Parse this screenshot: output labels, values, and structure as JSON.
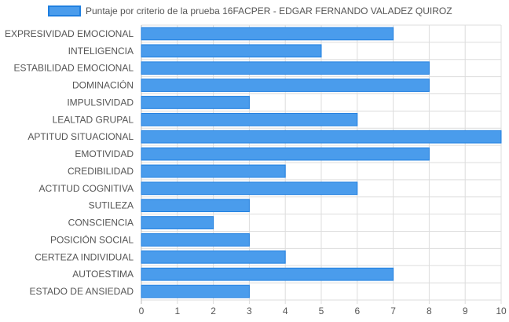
{
  "chart_data": {
    "type": "bar",
    "orientation": "horizontal",
    "legend": {
      "label": "Puntaje por criterio de la prueba 16FACPER - EDGAR FERNANDO VALADEZ QUIROZ",
      "position": "top"
    },
    "categories": [
      "EXPRESIVIDAD EMOCIONAL",
      "INTELIGENCIA",
      "ESTABILIDAD EMOCIONAL",
      "DOMINACIÓN",
      "IMPULSIVIDAD",
      "LEALTAD GRUPAL",
      "APTITUD SITUACIONAL",
      "EMOTIVIDAD",
      "CREDIBILIDAD",
      "ACTITUD COGNITIVA",
      "SUTILEZA",
      "CONSCIENCIA",
      "POSICIÓN SOCIAL",
      "CERTEZA INDIVIDUAL",
      "AUTOESTIMA",
      "ESTADO DE ANSIEDAD"
    ],
    "series": [
      {
        "name": "Puntaje por criterio de la prueba 16FACPER - EDGAR FERNANDO VALADEZ QUIROZ",
        "values": [
          7,
          5,
          8,
          8,
          3,
          6,
          10,
          8,
          4,
          6,
          3,
          2,
          3,
          4,
          7,
          3
        ]
      }
    ],
    "xlim": [
      0,
      10
    ],
    "x_ticks": [
      "0",
      "1",
      "2",
      "3",
      "4",
      "5",
      "6",
      "7",
      "8",
      "9",
      "10"
    ],
    "grid": true,
    "colors": {
      "bar_fill": "#4a9cec",
      "bar_stroke": "#1f7fe0",
      "grid": "#dddddd",
      "axis": "#bbbbbb"
    }
  }
}
